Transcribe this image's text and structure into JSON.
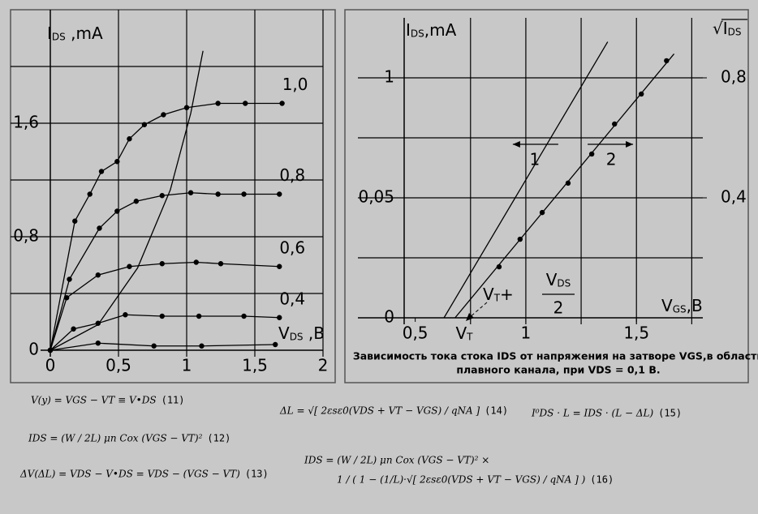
{
  "chart_data": [
    {
      "type": "line",
      "xlabel": {
        "main": "V",
        "sub": "DS",
        "rest": " ,B"
      },
      "ylabel": {
        "main": "I",
        "sub": "DS",
        "rest": " ,mA"
      },
      "xlim": [
        0,
        2
      ],
      "ylim": [
        0,
        2.4
      ],
      "xticks": [
        0,
        {
          "value": 0.5,
          "label": "0,5"
        },
        1,
        {
          "value": 1.5,
          "label": "1,5"
        },
        2
      ],
      "yticks": [
        0,
        {
          "value": 0.8,
          "label": "0,8"
        },
        {
          "value": 1.6,
          "label": "1,6"
        }
      ],
      "xgrid": [
        0.5,
        1,
        1.5,
        2
      ],
      "ygrid": [
        0.4,
        0.8,
        1.2,
        1.6,
        2.0
      ],
      "series": [
        {
          "name": "1,0",
          "color": "#000000",
          "markers": true,
          "x": [
            0,
            0.18,
            0.29,
            0.375,
            0.49,
            0.58,
            0.69,
            0.83,
            1.0,
            1.23,
            1.43,
            1.7
          ],
          "values": [
            0,
            0.91,
            1.1,
            1.26,
            1.33,
            1.49,
            1.59,
            1.66,
            1.71,
            1.74,
            1.74,
            1.74
          ]
        },
        {
          "name": "0,8",
          "color": "#000000",
          "markers": true,
          "x": [
            0,
            0.14,
            0.36,
            0.49,
            0.63,
            0.82,
            1.03,
            1.23,
            1.42,
            1.68
          ],
          "values": [
            0,
            0.5,
            0.86,
            0.98,
            1.05,
            1.09,
            1.11,
            1.1,
            1.1,
            1.1
          ]
        },
        {
          "name": "0,6",
          "color": "#000000",
          "markers": true,
          "x": [
            0,
            0.12,
            0.35,
            0.58,
            0.82,
            1.07,
            1.25,
            1.68
          ],
          "values": [
            0,
            0.37,
            0.53,
            0.59,
            0.61,
            0.62,
            0.61,
            0.59
          ]
        },
        {
          "name": "0,4",
          "color": "#000000",
          "markers": true,
          "x": [
            0,
            0.17,
            0.35,
            0.55,
            0.82,
            1.09,
            1.42,
            1.68
          ],
          "values": [
            0,
            0.15,
            0.19,
            0.25,
            0.24,
            0.24,
            0.24,
            0.23
          ]
        },
        {
          "name": null,
          "color": "#000000",
          "markers": true,
          "x": [
            0,
            0.35,
            0.76,
            1.11,
            1.65
          ],
          "values": [
            0,
            0.05,
            0.03,
            0.03,
            0.04
          ]
        },
        {
          "name": null,
          "color": "#000000",
          "markers": false,
          "x": [
            0,
            0.35,
            0.64,
            0.88,
            1.03,
            1.12
          ],
          "values": [
            0,
            0.18,
            0.58,
            1.13,
            1.67,
            2.11
          ]
        }
      ]
    },
    {
      "type": "line",
      "xlabel": {
        "main": "V",
        "sub": "GS",
        "rest": ",B"
      },
      "ylabel": {
        "main": "I",
        "sub": "DS",
        "rest": ",mA"
      },
      "y2label": {
        "main": "√I",
        "sub": "DS"
      },
      "xlim": [
        0.45,
        1.8
      ],
      "y2lim": [
        0,
        1
      ],
      "xticks": [
        {
          "value": 0.5,
          "label": "0,5"
        },
        1,
        {
          "value": 1.5,
          "label": "1,5"
        }
      ],
      "vt_label": {
        "main": "V",
        "sub": "T"
      },
      "ycategories": [
        "0",
        "0,05",
        "1"
      ],
      "y2ticks": [
        {
          "value": 0.4,
          "label": "0,4"
        },
        {
          "value": 0.8,
          "label": "0,8"
        }
      ],
      "xgrid": [
        0.75,
        1,
        1.25,
        1.5,
        1.75
      ],
      "ygrid": [
        0.2,
        0.4,
        0.6,
        0.8
      ],
      "annotation": {
        "lead": {
          "main": "V",
          "sub": "T",
          "rest": "+"
        },
        "numer": {
          "main": "V",
          "sub": "DS"
        },
        "denom": "2"
      },
      "series": [
        {
          "name": null,
          "axis": "y2",
          "color": "#000000",
          "markers": true,
          "line": false,
          "x": [
            0.879,
            0.974,
            1.074,
            1.191,
            1.298,
            1.401,
            1.522,
            1.636
          ],
          "values": [
            0.17,
            0.262,
            0.351,
            0.449,
            0.546,
            0.646,
            0.746,
            0.857
          ]
        },
        {
          "name": "1",
          "axis": "y2",
          "color": "#000000",
          "markers": false,
          "arrow": "left",
          "x": [
            0.63,
            1.37
          ],
          "values": [
            0,
            0.92
          ]
        },
        {
          "name": "2",
          "axis": "y2",
          "color": "#000000",
          "markers": false,
          "arrow": "right",
          "x": [
            0.68,
            1.67
          ],
          "values": [
            0,
            0.88
          ]
        }
      ]
    }
  ],
  "caption": [
    "Зависимость тока стока IDS от напряжения на затворе VGS,в области",
    "плавного канала, при VDS = 0,1 В."
  ],
  "formulas": [
    {
      "text": [
        "V(y) = VGS − VT ≡ V•DS"
      ],
      "number": "(11)"
    },
    {
      "text": [
        "IDS = (W / 2L) μn Cox (VGS − VT)²"
      ],
      "number": "(12)"
    },
    {
      "text": [
        "ΔV(ΔL) = VDS − V•DS = VDS − (VGS − VT)"
      ],
      "number": "(13)"
    },
    {
      "text": [
        "ΔL = √[ 2εsε0(VDS + VT − VGS) / qNA ]"
      ],
      "number": "(14)"
    },
    {
      "text": [
        "I⁰DS · L = IDS · (L − ΔL)"
      ],
      "number": "(15)"
    },
    {
      "text": [
        "IDS = (W / 2L) μn Cox (VGS − VT)² ×",
        "1 / ( 1 − (1/L)·√[ 2εsε0(VDS + VT − VGS) / qNA ] )"
      ],
      "number": "(16)"
    }
  ]
}
